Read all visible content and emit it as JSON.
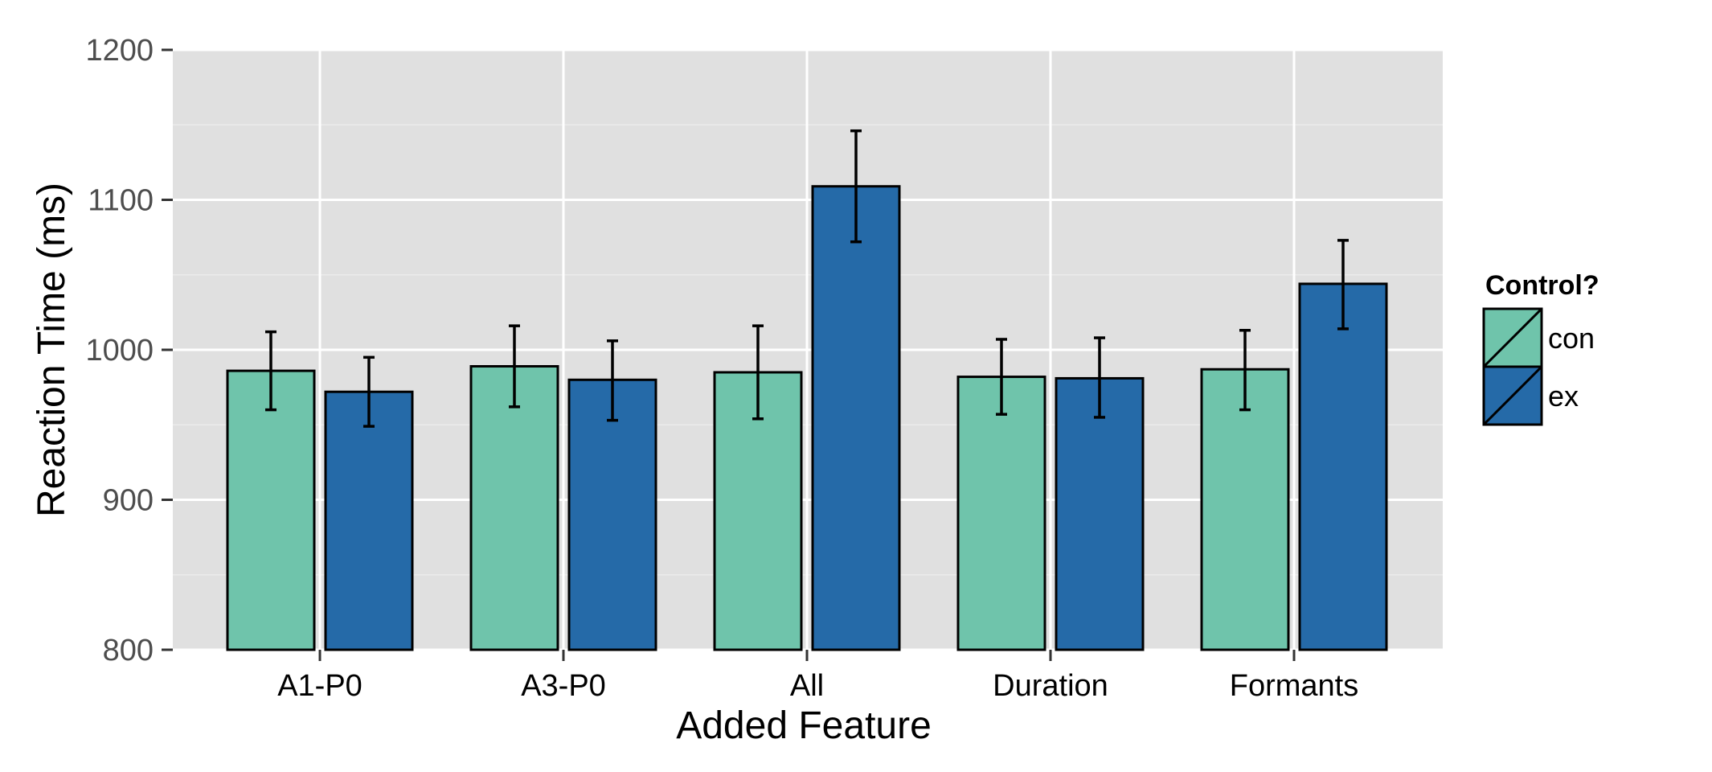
{
  "chart_data": {
    "type": "bar",
    "categories": [
      "A1-P0",
      "A3-P0",
      "All",
      "Duration",
      "Formants"
    ],
    "series": [
      {
        "name": "con",
        "values": [
          986,
          989,
          985,
          982,
          987
        ],
        "error_low": [
          960,
          962,
          954,
          957,
          960
        ],
        "error_high": [
          1012,
          1016,
          1016,
          1007,
          1013
        ]
      },
      {
        "name": "ex",
        "values": [
          972,
          980,
          1109,
          981,
          1044
        ],
        "error_low": [
          949,
          953,
          1072,
          955,
          1014
        ],
        "error_high": [
          995,
          1006,
          1146,
          1008,
          1073
        ]
      }
    ],
    "xlabel": "Added Feature",
    "ylabel": "Reaction Time (ms)",
    "ylim": [
      800,
      1200
    ],
    "yticks": [
      800,
      900,
      1000,
      1100,
      1200
    ],
    "grid": true,
    "legend": {
      "title": "Control?",
      "placement": "right",
      "entries": [
        "con",
        "ex"
      ]
    },
    "colors": {
      "con": "#6fc4ab",
      "ex": "#256aa8",
      "panel": "#e0e0e0",
      "grid_major": "#ffffff",
      "grid_minor": "#ebebeb"
    }
  }
}
